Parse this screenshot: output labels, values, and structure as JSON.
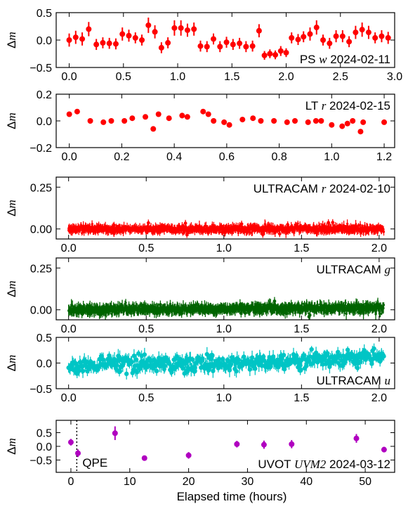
{
  "figure": {
    "xlabel": "Elapsed time (hours)",
    "ylabel_prefix": "Δ",
    "ylabel_var": "m"
  },
  "colors": {
    "red": "#ff0000",
    "green": "#006400",
    "cyan": "#00c5c5",
    "magenta": "#b000c0",
    "axis": "#000000"
  },
  "chart_data": [
    {
      "type": "scatter",
      "label_plain_pre": "PS ",
      "label_math": "w",
      "label_plain_post": " 2024-02-11",
      "color": "red",
      "xlim": [
        -0.12,
        3.0
      ],
      "ylim": [
        -0.5,
        0.5
      ],
      "xticks": [
        0.0,
        0.5,
        1.0,
        1.5,
        2.0,
        2.5,
        3.0
      ],
      "xtick_labels": [
        "0.0",
        "0.5",
        "1.0",
        "1.5",
        "2.0",
        "2.5",
        "3.0"
      ],
      "yticks": [
        -0.5,
        0.0,
        0.5
      ],
      "ytick_labels": [
        "−0.5",
        "0.0",
        "0.5"
      ],
      "points": [
        {
          "x": 0.0,
          "y": 0.0,
          "err": 0.12
        },
        {
          "x": 0.06,
          "y": 0.05,
          "err": 0.12
        },
        {
          "x": 0.12,
          "y": 0.02,
          "err": 0.12
        },
        {
          "x": 0.18,
          "y": 0.2,
          "err": 0.13
        },
        {
          "x": 0.25,
          "y": -0.08,
          "err": 0.1
        },
        {
          "x": 0.31,
          "y": -0.05,
          "err": 0.1
        },
        {
          "x": 0.37,
          "y": -0.06,
          "err": 0.1
        },
        {
          "x": 0.43,
          "y": -0.07,
          "err": 0.1
        },
        {
          "x": 0.49,
          "y": 0.11,
          "err": 0.12
        },
        {
          "x": 0.55,
          "y": 0.08,
          "err": 0.11
        },
        {
          "x": 0.61,
          "y": 0.04,
          "err": 0.1
        },
        {
          "x": 0.67,
          "y": 0.0,
          "err": 0.1
        },
        {
          "x": 0.73,
          "y": 0.27,
          "err": 0.14
        },
        {
          "x": 0.79,
          "y": 0.15,
          "err": 0.12
        },
        {
          "x": 0.85,
          "y": -0.14,
          "err": 0.1
        },
        {
          "x": 0.91,
          "y": -0.05,
          "err": 0.1
        },
        {
          "x": 0.97,
          "y": 0.22,
          "err": 0.14
        },
        {
          "x": 1.03,
          "y": 0.22,
          "err": 0.14
        },
        {
          "x": 1.09,
          "y": 0.18,
          "err": 0.12
        },
        {
          "x": 1.15,
          "y": 0.2,
          "err": 0.12
        },
        {
          "x": 1.21,
          "y": -0.11,
          "err": 0.1
        },
        {
          "x": 1.27,
          "y": -0.12,
          "err": 0.1
        },
        {
          "x": 1.33,
          "y": 0.02,
          "err": 0.1
        },
        {
          "x": 1.39,
          "y": -0.12,
          "err": 0.1
        },
        {
          "x": 1.45,
          "y": -0.04,
          "err": 0.1
        },
        {
          "x": 1.51,
          "y": -0.08,
          "err": 0.1
        },
        {
          "x": 1.57,
          "y": -0.06,
          "err": 0.1
        },
        {
          "x": 1.63,
          "y": -0.12,
          "err": 0.1
        },
        {
          "x": 1.69,
          "y": -0.11,
          "err": 0.1
        },
        {
          "x": 1.75,
          "y": 0.17,
          "err": 0.12
        },
        {
          "x": 1.8,
          "y": -0.28,
          "err": 0.08
        },
        {
          "x": 1.85,
          "y": -0.25,
          "err": 0.08
        },
        {
          "x": 1.9,
          "y": -0.27,
          "err": 0.08
        },
        {
          "x": 1.95,
          "y": -0.2,
          "err": 0.09
        },
        {
          "x": 2.0,
          "y": -0.23,
          "err": 0.08
        },
        {
          "x": 2.05,
          "y": 0.04,
          "err": 0.1
        },
        {
          "x": 2.11,
          "y": 0.01,
          "err": 0.1
        },
        {
          "x": 2.16,
          "y": 0.06,
          "err": 0.1
        },
        {
          "x": 2.22,
          "y": 0.11,
          "err": 0.12
        },
        {
          "x": 2.28,
          "y": 0.23,
          "err": 0.13
        },
        {
          "x": 2.34,
          "y": 0.0,
          "err": 0.1
        },
        {
          "x": 2.4,
          "y": -0.06,
          "err": 0.1
        },
        {
          "x": 2.46,
          "y": 0.07,
          "err": 0.11
        },
        {
          "x": 2.52,
          "y": 0.07,
          "err": 0.11
        },
        {
          "x": 2.58,
          "y": -0.03,
          "err": 0.1
        },
        {
          "x": 2.64,
          "y": 0.14,
          "err": 0.12
        },
        {
          "x": 2.7,
          "y": 0.19,
          "err": 0.13
        },
        {
          "x": 2.76,
          "y": 0.14,
          "err": 0.12
        },
        {
          "x": 2.82,
          "y": 0.04,
          "err": 0.1
        },
        {
          "x": 2.88,
          "y": 0.07,
          "err": 0.11
        },
        {
          "x": 2.94,
          "y": 0.04,
          "err": 0.11
        }
      ]
    },
    {
      "type": "scatter",
      "label_plain_pre": "LT ",
      "label_math": "r",
      "label_plain_post": " 2024-02-15",
      "color": "red",
      "xlim": [
        -0.05,
        1.24
      ],
      "ylim": [
        -0.2,
        0.2
      ],
      "xticks": [
        0.0,
        0.2,
        0.4,
        0.6,
        0.8,
        1.0,
        1.2
      ],
      "xtick_labels": [
        "0.0",
        "0.2",
        "0.4",
        "0.6",
        "0.8",
        "1.0",
        "1.2"
      ],
      "yticks": [
        -0.2,
        0.0,
        0.2
      ],
      "ytick_labels": [
        "−0.2",
        "0.0",
        "0.2"
      ],
      "points": [
        {
          "x": 0.0,
          "y": 0.05,
          "err": 0.015
        },
        {
          "x": 0.03,
          "y": 0.07,
          "err": 0.015
        },
        {
          "x": 0.08,
          "y": 0.0,
          "err": 0.015
        },
        {
          "x": 0.13,
          "y": -0.01,
          "err": 0.015
        },
        {
          "x": 0.16,
          "y": 0.0,
          "err": 0.015
        },
        {
          "x": 0.21,
          "y": 0.0,
          "err": 0.015
        },
        {
          "x": 0.24,
          "y": 0.02,
          "err": 0.015
        },
        {
          "x": 0.29,
          "y": 0.03,
          "err": 0.015
        },
        {
          "x": 0.32,
          "y": -0.06,
          "err": 0.015
        },
        {
          "x": 0.34,
          "y": 0.05,
          "err": 0.015
        },
        {
          "x": 0.38,
          "y": 0.02,
          "err": 0.015
        },
        {
          "x": 0.43,
          "y": 0.04,
          "err": 0.02
        },
        {
          "x": 0.45,
          "y": 0.03,
          "err": 0.02
        },
        {
          "x": 0.51,
          "y": 0.07,
          "err": 0.015
        },
        {
          "x": 0.53,
          "y": 0.05,
          "err": 0.015
        },
        {
          "x": 0.55,
          "y": 0.0,
          "err": 0.015
        },
        {
          "x": 0.59,
          "y": -0.01,
          "err": 0.015
        },
        {
          "x": 0.61,
          "y": -0.03,
          "err": 0.015
        },
        {
          "x": 0.66,
          "y": 0.01,
          "err": 0.015
        },
        {
          "x": 0.7,
          "y": 0.02,
          "err": 0.015
        },
        {
          "x": 0.73,
          "y": 0.0,
          "err": 0.015
        },
        {
          "x": 0.78,
          "y": 0.0,
          "err": 0.015
        },
        {
          "x": 0.83,
          "y": -0.01,
          "err": 0.015
        },
        {
          "x": 0.86,
          "y": 0.0,
          "err": 0.015
        },
        {
          "x": 0.91,
          "y": -0.01,
          "err": 0.015
        },
        {
          "x": 0.94,
          "y": 0.0,
          "err": 0.015
        },
        {
          "x": 0.96,
          "y": 0.0,
          "err": 0.015
        },
        {
          "x": 1.0,
          "y": -0.03,
          "err": 0.015
        },
        {
          "x": 1.04,
          "y": -0.04,
          "err": 0.015
        },
        {
          "x": 1.06,
          "y": -0.02,
          "err": 0.015
        },
        {
          "x": 1.08,
          "y": 0.0,
          "err": 0.015
        },
        {
          "x": 1.11,
          "y": -0.08,
          "err": 0.015
        },
        {
          "x": 1.12,
          "y": -0.01,
          "err": 0.015
        },
        {
          "x": 1.2,
          "y": -0.01,
          "err": 0.015
        }
      ]
    },
    {
      "type": "scatter",
      "label_plain_pre": "ULTRACAM ",
      "label_math": "r",
      "label_plain_post": " 2024-02-10",
      "color": "red",
      "dense": {
        "n": 900,
        "x_start": 0.0,
        "x_end": 2.03,
        "scatter": 0.01,
        "err": 0.02,
        "trend_start": 0.0,
        "trend_end": 0.0,
        "wave_amp": 0.0
      },
      "xlim": [
        -0.08,
        2.1
      ],
      "ylim": [
        -0.06,
        0.31
      ],
      "xticks": [
        0.0,
        0.5,
        1.0,
        1.5,
        2.0
      ],
      "xtick_labels": [
        "0.0",
        "0.5",
        "1.0",
        "1.5",
        "2.0"
      ],
      "yticks": [
        0.0,
        0.25
      ],
      "ytick_labels": [
        "0.00",
        "0.25"
      ]
    },
    {
      "type": "scatter",
      "label_plain_pre": "ULTRACAM ",
      "label_math": "g",
      "label_plain_post": "",
      "color": "green",
      "dense": {
        "n": 900,
        "x_start": 0.0,
        "x_end": 2.03,
        "scatter": 0.012,
        "err": 0.025,
        "trend_start": 0.0,
        "trend_end": 0.012,
        "wave_amp": 0.0
      },
      "xlim": [
        -0.08,
        2.1
      ],
      "ylim": [
        -0.06,
        0.31
      ],
      "xticks": [
        0.0,
        0.5,
        1.0,
        1.5,
        2.0
      ],
      "xtick_labels": [
        "0.0",
        "0.5",
        "1.0",
        "1.5",
        "2.0"
      ],
      "yticks": [
        0.0,
        0.25
      ],
      "ytick_labels": [
        "0.00",
        "0.25"
      ]
    },
    {
      "type": "scatter",
      "label_plain_pre": "ULTRACAM ",
      "label_math": "u",
      "label_plain_post": "",
      "color": "cyan",
      "dense": {
        "n": 420,
        "x_start": 0.0,
        "x_end": 2.03,
        "scatter": 0.07,
        "err": 0.1,
        "trend_start": -0.06,
        "trend_end": 0.1,
        "wave_amp": 0.04
      },
      "xlim": [
        -0.08,
        2.1
      ],
      "ylim": [
        -0.5,
        0.5
      ],
      "xticks": [
        0.0,
        0.5,
        1.0,
        1.5,
        2.0
      ],
      "xtick_labels": [
        "0.0",
        "0.5",
        "1.0",
        "1.5",
        "2.0"
      ],
      "yticks": [
        -0.5,
        0.0,
        0.5
      ],
      "ytick_labels": [
        "−0.5",
        "0.0",
        "0.5"
      ]
    },
    {
      "type": "scatter",
      "label_plain_pre": "UVOT ",
      "label_math": "UVM2",
      "label_plain_post": " 2024-03-12",
      "color": "magenta",
      "annotation": "QPE",
      "vline_x": 1.0,
      "xlim": [
        -2.5,
        55.0
      ],
      "ylim": [
        -0.95,
        0.95
      ],
      "xticks": [
        0,
        10,
        20,
        30,
        40,
        50
      ],
      "xtick_labels": [
        "0",
        "10",
        "20",
        "30",
        "40",
        "50"
      ],
      "yticks": [
        -0.5,
        0.0,
        0.5
      ],
      "ytick_labels": [
        "−0.5",
        "0.0",
        "0.5"
      ],
      "points": [
        {
          "x": 0.0,
          "y": 0.15,
          "err": 0.12
        },
        {
          "x": 1.2,
          "y": -0.25,
          "err": 0.14
        },
        {
          "x": 7.5,
          "y": 0.48,
          "err": 0.25
        },
        {
          "x": 12.5,
          "y": -0.43,
          "err": 0.07
        },
        {
          "x": 20.0,
          "y": -0.33,
          "err": 0.12
        },
        {
          "x": 28.2,
          "y": 0.08,
          "err": 0.12
        },
        {
          "x": 32.8,
          "y": 0.06,
          "err": 0.15
        },
        {
          "x": 37.5,
          "y": 0.08,
          "err": 0.15
        },
        {
          "x": 48.5,
          "y": 0.29,
          "err": 0.16
        },
        {
          "x": 53.2,
          "y": -0.12,
          "err": 0.1
        }
      ]
    }
  ]
}
